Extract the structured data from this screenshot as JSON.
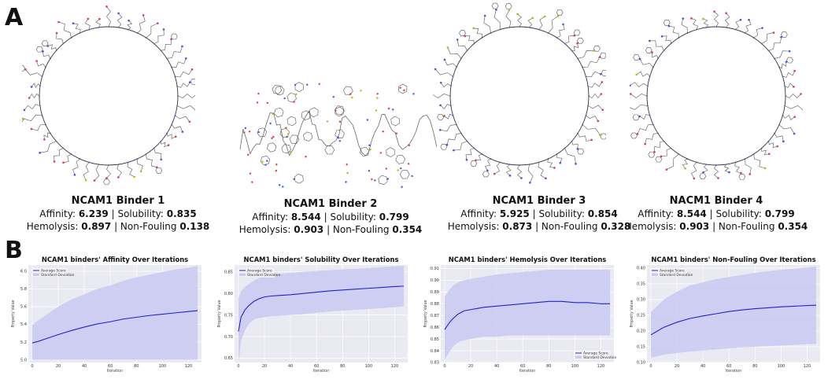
{
  "panels": {
    "a": "A",
    "b": "B"
  },
  "binders": [
    {
      "name": "NCAM1 Binder 1",
      "affinity_label": "Affinity: ",
      "affinity": "6.239",
      "solubility_label": "Solubility: ",
      "solubility": "0.835",
      "hemolysis_label": "Hemolysis: ",
      "hemolysis": "0.897",
      "nonfouling_label": "Non-Fouling ",
      "nonfouling": "0.138",
      "structure": "macrocycle"
    },
    {
      "name": "NCAM1 Binder 2",
      "affinity_label": "Affinity: ",
      "affinity": "8.544",
      "solubility_label": "Solubility: ",
      "solubility": "0.799",
      "hemolysis_label": "Hemolysis: ",
      "hemolysis": "0.903",
      "nonfouling_label": "Non-Fouling ",
      "nonfouling": "0.354",
      "structure": "folded-peptide"
    },
    {
      "name": "NCAM1 Binder 3",
      "affinity_label": "Affinity: ",
      "affinity": "5.925",
      "solubility_label": "Solubility: ",
      "solubility": "0.854",
      "hemolysis_label": "Hemolysis: ",
      "hemolysis": "0.873",
      "nonfouling_label": "Non-Fouling ",
      "nonfouling": "0.328",
      "structure": "macrocycle"
    },
    {
      "name": "NACM1 Binder 4",
      "affinity_label": "Affinity: ",
      "affinity": "8.544",
      "solubility_label": "Solubility: ",
      "solubility": "0.799",
      "hemolysis_label": "Hemolysis: ",
      "hemolysis": "0.903",
      "nonfouling_label": "Non-Fouling ",
      "nonfouling": "0.354",
      "structure": "macrocycle"
    }
  ],
  "colors": {
    "line": "#2222cc",
    "band": "#c9c9f2",
    "plot_bg": "#eaeaf2",
    "grid": "#ffffff",
    "atom_o": "#e03a3a",
    "atom_n": "#3a58e0",
    "atom_s": "#c8b400",
    "bond": "#555555"
  },
  "chart_data": [
    {
      "type": "line",
      "title": "NCAM1 binders' Affinity Over Iterations",
      "xlabel": "Iteration",
      "ylabel": "Property Value",
      "xlim": [
        -3,
        130
      ],
      "ylim": [
        4.97,
        6.07
      ],
      "xticks": [
        "0",
        "20",
        "40",
        "60",
        "80",
        "100",
        "120"
      ],
      "xtick_values": [
        0,
        20,
        40,
        60,
        80,
        100,
        120
      ],
      "yticks": [
        "5.0",
        "5.2",
        "5.4",
        "5.6",
        "5.8",
        "6.0"
      ],
      "ytick_values": [
        5.0,
        5.2,
        5.4,
        5.6,
        5.8,
        6.0
      ],
      "legend": "top-left",
      "series": [
        {
          "name": "Average Score",
          "x": [
            0,
            5,
            10,
            20,
            30,
            40,
            50,
            60,
            70,
            80,
            90,
            100,
            110,
            120,
            127
          ],
          "y": [
            5.19,
            5.21,
            5.235,
            5.285,
            5.33,
            5.37,
            5.405,
            5.43,
            5.46,
            5.48,
            5.5,
            5.515,
            5.53,
            5.545,
            5.555
          ]
        }
      ],
      "band": {
        "name": "Standard Deviation",
        "x": [
          0,
          5,
          10,
          20,
          30,
          40,
          50,
          60,
          70,
          80,
          90,
          100,
          110,
          120,
          127
        ],
        "lower": [
          5.0,
          5.0,
          5.0,
          5.0,
          5.0,
          5.0,
          5.0,
          5.0,
          5.0,
          5.0,
          5.0,
          5.0,
          5.0,
          5.0,
          5.0
        ],
        "upper": [
          5.39,
          5.45,
          5.5,
          5.6,
          5.68,
          5.74,
          5.8,
          5.84,
          5.89,
          5.93,
          5.96,
          5.99,
          6.02,
          6.04,
          6.06
        ]
      }
    },
    {
      "type": "line",
      "title": "NCAM1 binders' Solubility Over Iterations",
      "xlabel": "Iteration",
      "ylabel": "Property Value",
      "xlim": [
        -3,
        130
      ],
      "ylim": [
        0.64,
        0.866
      ],
      "xticks": [
        "0",
        "20",
        "40",
        "60",
        "80",
        "100",
        "120"
      ],
      "xtick_values": [
        0,
        20,
        40,
        60,
        80,
        100,
        120
      ],
      "yticks": [
        "0.65",
        "0.70",
        "0.75",
        "0.80",
        "0.85"
      ],
      "ytick_values": [
        0.65,
        0.7,
        0.75,
        0.8,
        0.85
      ],
      "legend": "top-left",
      "series": [
        {
          "name": "Average Score",
          "x": [
            0,
            2,
            5,
            8,
            12,
            16,
            20,
            25,
            30,
            40,
            50,
            60,
            70,
            80,
            90,
            100,
            110,
            120,
            127
          ],
          "y": [
            0.712,
            0.745,
            0.762,
            0.772,
            0.782,
            0.788,
            0.792,
            0.794,
            0.795,
            0.797,
            0.8,
            0.803,
            0.806,
            0.808,
            0.81,
            0.812,
            0.814,
            0.816,
            0.817
          ]
        }
      ],
      "band": {
        "name": "Standard Deviation",
        "x": [
          0,
          2,
          5,
          8,
          12,
          16,
          20,
          25,
          30,
          40,
          50,
          60,
          70,
          80,
          90,
          100,
          110,
          120,
          127
        ],
        "lower": [
          0.64,
          0.69,
          0.715,
          0.73,
          0.74,
          0.743,
          0.745,
          0.747,
          0.748,
          0.75,
          0.752,
          0.755,
          0.758,
          0.76,
          0.762,
          0.764,
          0.766,
          0.768,
          0.77
        ],
        "upper": [
          0.79,
          0.805,
          0.815,
          0.822,
          0.83,
          0.836,
          0.84,
          0.842,
          0.845,
          0.848,
          0.85,
          0.852,
          0.854,
          0.856,
          0.857,
          0.859,
          0.861,
          0.863,
          0.864
        ]
      }
    },
    {
      "type": "line",
      "title": "NCAM1 binders' Hemolysis Over Iterations",
      "xlabel": "Iteration",
      "ylabel": "Property Value",
      "xlim": [
        -3,
        130
      ],
      "ylim": [
        0.83,
        0.913
      ],
      "xticks": [
        "0",
        "20",
        "40",
        "60",
        "80",
        "100",
        "120"
      ],
      "xtick_values": [
        0,
        20,
        40,
        60,
        80,
        100,
        120
      ],
      "yticks": [
        "0.83",
        "0.84",
        "0.85",
        "0.86",
        "0.87",
        "0.88",
        "0.89",
        "0.90",
        "0.91"
      ],
      "ytick_values": [
        0.83,
        0.84,
        0.85,
        0.86,
        0.87,
        0.88,
        0.89,
        0.9,
        0.91
      ],
      "legend": "bottom-right",
      "series": [
        {
          "name": "Average Score",
          "x": [
            0,
            3,
            6,
            10,
            15,
            20,
            25,
            30,
            40,
            50,
            60,
            70,
            80,
            90,
            100,
            110,
            120,
            127
          ],
          "y": [
            0.858,
            0.863,
            0.867,
            0.871,
            0.874,
            0.875,
            0.876,
            0.877,
            0.878,
            0.879,
            0.88,
            0.881,
            0.882,
            0.882,
            0.881,
            0.881,
            0.88,
            0.88
          ]
        }
      ],
      "band": {
        "name": "Standard Deviation",
        "x": [
          0,
          3,
          6,
          10,
          15,
          20,
          25,
          30,
          40,
          50,
          60,
          70,
          80,
          90,
          100,
          110,
          120,
          127
        ],
        "lower": [
          0.832,
          0.838,
          0.843,
          0.847,
          0.849,
          0.85,
          0.851,
          0.852,
          0.852,
          0.853,
          0.853,
          0.853,
          0.853,
          0.853,
          0.853,
          0.853,
          0.853,
          0.853
        ],
        "upper": [
          0.886,
          0.891,
          0.895,
          0.898,
          0.9,
          0.901,
          0.902,
          0.903,
          0.905,
          0.906,
          0.907,
          0.908,
          0.909,
          0.909,
          0.909,
          0.909,
          0.909,
          0.909
        ]
      }
    },
    {
      "type": "line",
      "title": "NCAM1 binders' Non-Fouling Over Iterations",
      "xlabel": "Iteration",
      "ylabel": "Property Value",
      "xlim": [
        -3,
        130
      ],
      "ylim": [
        0.1,
        0.41
      ],
      "xticks": [
        "0",
        "20",
        "40",
        "60",
        "80",
        "100",
        "120"
      ],
      "xtick_values": [
        0,
        20,
        40,
        60,
        80,
        100,
        120
      ],
      "yticks": [
        "0.10",
        "0.15",
        "0.20",
        "0.25",
        "0.30",
        "0.35",
        "0.40"
      ],
      "ytick_values": [
        0.1,
        0.15,
        0.2,
        0.25,
        0.3,
        0.35,
        0.4
      ],
      "legend": "top-left",
      "series": [
        {
          "name": "Average Score",
          "x": [
            0,
            5,
            10,
            20,
            30,
            40,
            50,
            60,
            70,
            80,
            90,
            100,
            110,
            120,
            127
          ],
          "y": [
            0.188,
            0.2,
            0.212,
            0.228,
            0.24,
            0.248,
            0.255,
            0.262,
            0.267,
            0.271,
            0.274,
            0.277,
            0.279,
            0.281,
            0.282
          ]
        }
      ],
      "band": {
        "name": "Standard Deviation",
        "x": [
          0,
          5,
          10,
          20,
          30,
          40,
          50,
          60,
          70,
          80,
          90,
          100,
          110,
          120,
          127
        ],
        "lower": [
          0.115,
          0.12,
          0.125,
          0.13,
          0.135,
          0.138,
          0.142,
          0.145,
          0.148,
          0.15,
          0.152,
          0.154,
          0.156,
          0.158,
          0.159
        ],
        "upper": [
          0.26,
          0.28,
          0.3,
          0.325,
          0.345,
          0.355,
          0.365,
          0.372,
          0.378,
          0.385,
          0.39,
          0.395,
          0.398,
          0.402,
          0.405
        ]
      }
    }
  ]
}
